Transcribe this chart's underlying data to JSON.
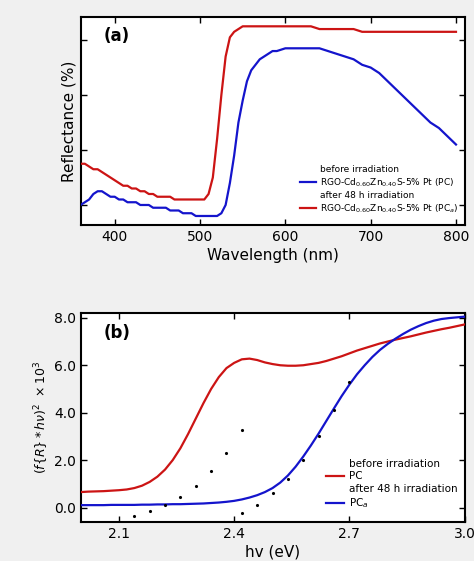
{
  "panel_a": {
    "title": "(a)",
    "xlabel": "Wavelength (nm)",
    "ylabel": "Reflectance (%)",
    "xlim": [
      360,
      810
    ],
    "xticks": [
      400,
      500,
      600,
      700,
      800
    ],
    "blue_x": [
      360,
      370,
      375,
      380,
      385,
      390,
      395,
      400,
      405,
      410,
      415,
      420,
      425,
      430,
      435,
      440,
      445,
      450,
      455,
      460,
      465,
      470,
      475,
      480,
      485,
      490,
      495,
      500,
      505,
      510,
      515,
      520,
      525,
      530,
      535,
      540,
      545,
      550,
      555,
      560,
      565,
      570,
      575,
      580,
      585,
      590,
      600,
      610,
      620,
      630,
      640,
      650,
      660,
      670,
      680,
      690,
      700,
      710,
      720,
      730,
      740,
      750,
      760,
      770,
      780,
      790,
      800
    ],
    "blue_y": [
      20,
      22,
      24,
      25,
      25,
      24,
      23,
      23,
      22,
      22,
      21,
      21,
      21,
      20,
      20,
      20,
      19,
      19,
      19,
      19,
      18,
      18,
      18,
      17,
      17,
      17,
      16,
      16,
      16,
      16,
      16,
      16,
      17,
      20,
      28,
      38,
      50,
      58,
      65,
      69,
      71,
      73,
      74,
      75,
      76,
      76,
      77,
      77,
      77,
      77,
      77,
      76,
      75,
      74,
      73,
      71,
      70,
      68,
      65,
      62,
      59,
      56,
      53,
      50,
      48,
      45,
      42
    ],
    "red_x": [
      360,
      365,
      370,
      375,
      380,
      385,
      390,
      395,
      400,
      405,
      410,
      415,
      420,
      425,
      430,
      435,
      440,
      445,
      450,
      455,
      460,
      465,
      470,
      475,
      480,
      485,
      490,
      495,
      500,
      505,
      510,
      515,
      520,
      525,
      530,
      535,
      540,
      545,
      550,
      555,
      560,
      565,
      570,
      575,
      580,
      585,
      590,
      600,
      610,
      620,
      630,
      640,
      650,
      660,
      670,
      680,
      690,
      700,
      710,
      720,
      730,
      740,
      750,
      760,
      770,
      780,
      790,
      800
    ],
    "red_y": [
      35,
      35,
      34,
      33,
      33,
      32,
      31,
      30,
      29,
      28,
      27,
      27,
      26,
      26,
      25,
      25,
      24,
      24,
      23,
      23,
      23,
      23,
      22,
      22,
      22,
      22,
      22,
      22,
      22,
      22,
      24,
      30,
      44,
      60,
      74,
      81,
      83,
      84,
      85,
      85,
      85,
      85,
      85,
      85,
      85,
      85,
      85,
      85,
      85,
      85,
      85,
      84,
      84,
      84,
      84,
      84,
      83,
      83,
      83,
      83,
      83,
      83,
      83,
      83,
      83,
      83,
      83,
      83
    ],
    "legend_text_before": "before irradiation",
    "legend_blue": "RGO-Cd$_{0.60}$Zn$_{0.40}$S-5% Pt (PC)",
    "legend_text_after": "after 48 h irradiation",
    "legend_red": "RGO-Cd$_{0.60}$Zn$_{0.40}$S-5% Pt (PC$_a$)"
  },
  "panel_b": {
    "title": "(b)",
    "xlabel": "hv (eV)",
    "xlim": [
      2.0,
      3.0
    ],
    "ylim": [
      -0.6,
      8.2
    ],
    "yticks": [
      0.0,
      2.0,
      4.0,
      6.0,
      8.0
    ],
    "yticklabels": [
      "0.0",
      "2.0",
      "4.0",
      "6.0",
      "8.0"
    ],
    "xticks": [
      2.1,
      2.4,
      2.7,
      3.0
    ],
    "red_x": [
      2.0,
      2.02,
      2.04,
      2.06,
      2.08,
      2.1,
      2.12,
      2.14,
      2.16,
      2.18,
      2.2,
      2.22,
      2.24,
      2.26,
      2.28,
      2.3,
      2.32,
      2.34,
      2.36,
      2.38,
      2.4,
      2.42,
      2.44,
      2.46,
      2.48,
      2.5,
      2.52,
      2.54,
      2.56,
      2.58,
      2.6,
      2.62,
      2.64,
      2.66,
      2.68,
      2.7,
      2.72,
      2.74,
      2.76,
      2.78,
      2.8,
      2.82,
      2.84,
      2.86,
      2.88,
      2.9,
      2.92,
      2.94,
      2.96,
      2.98,
      3.0
    ],
    "red_y": [
      0.65,
      0.67,
      0.68,
      0.69,
      0.71,
      0.73,
      0.76,
      0.82,
      0.92,
      1.08,
      1.3,
      1.6,
      2.0,
      2.5,
      3.1,
      3.75,
      4.4,
      5.0,
      5.5,
      5.88,
      6.1,
      6.25,
      6.28,
      6.22,
      6.12,
      6.05,
      6.0,
      5.98,
      5.98,
      6.0,
      6.05,
      6.1,
      6.18,
      6.28,
      6.38,
      6.5,
      6.62,
      6.72,
      6.82,
      6.92,
      7.0,
      7.08,
      7.15,
      7.22,
      7.3,
      7.38,
      7.45,
      7.52,
      7.58,
      7.65,
      7.72
    ],
    "blue_x": [
      2.0,
      2.02,
      2.04,
      2.06,
      2.08,
      2.1,
      2.12,
      2.14,
      2.16,
      2.18,
      2.2,
      2.22,
      2.24,
      2.26,
      2.28,
      2.3,
      2.32,
      2.34,
      2.36,
      2.38,
      2.4,
      2.42,
      2.44,
      2.46,
      2.48,
      2.5,
      2.52,
      2.54,
      2.56,
      2.58,
      2.6,
      2.62,
      2.64,
      2.66,
      2.68,
      2.7,
      2.72,
      2.74,
      2.76,
      2.78,
      2.8,
      2.82,
      2.84,
      2.86,
      2.88,
      2.9,
      2.92,
      2.94,
      2.96,
      2.98,
      3.0
    ],
    "blue_y": [
      0.1,
      0.1,
      0.1,
      0.1,
      0.11,
      0.11,
      0.11,
      0.11,
      0.12,
      0.12,
      0.13,
      0.13,
      0.14,
      0.14,
      0.15,
      0.16,
      0.17,
      0.19,
      0.21,
      0.24,
      0.28,
      0.34,
      0.42,
      0.52,
      0.65,
      0.82,
      1.05,
      1.35,
      1.72,
      2.15,
      2.62,
      3.12,
      3.65,
      4.18,
      4.7,
      5.18,
      5.62,
      6.0,
      6.35,
      6.65,
      6.9,
      7.12,
      7.32,
      7.5,
      7.65,
      7.78,
      7.88,
      7.95,
      7.99,
      8.02,
      8.05
    ],
    "dot1_x": [
      2.14,
      2.18,
      2.22,
      2.26,
      2.3,
      2.34,
      2.38,
      2.42
    ],
    "dot1_y": [
      -0.35,
      -0.15,
      0.1,
      0.45,
      0.9,
      1.55,
      2.32,
      3.25
    ],
    "dot2_x": [
      2.42,
      2.46,
      2.5,
      2.54,
      2.58,
      2.62,
      2.66,
      2.7
    ],
    "dot2_y": [
      -0.25,
      0.1,
      0.6,
      1.22,
      2.0,
      3.0,
      4.1,
      5.28
    ],
    "legend_text_before": "before irradiation",
    "legend_red": "PC",
    "legend_text_after": "after 48 h irradiation",
    "legend_blue": "PC$_a$"
  },
  "bg_color": "#f0f0f0",
  "plot_bg": "#ffffff",
  "blue_color": "#1414cc",
  "red_color": "#cc1414"
}
